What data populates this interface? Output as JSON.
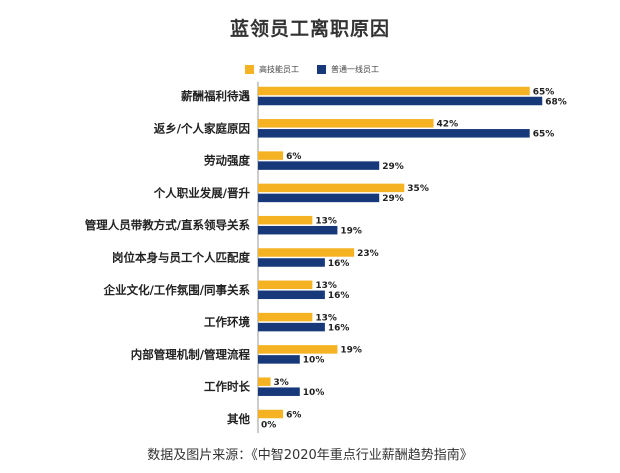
{
  "chart_data": {
    "type": "bar",
    "orientation": "horizontal",
    "title": "蓝领员工离职原因",
    "categories": [
      "薪酬福利待遇",
      "返乡/个人家庭原因",
      "劳动强度",
      "个人职业发展/晋升",
      "管理人员带教方式/直系领导关系",
      "岗位本身与员工个人匹配度",
      "企业文化/工作氛围/同事关系",
      "工作环境",
      "内部管理机制/管理流程",
      "工作时长",
      "其他"
    ],
    "series": [
      {
        "name": "高技能员工",
        "color": "#F5B324",
        "values": [
          65,
          42,
          6,
          35,
          13,
          23,
          13,
          13,
          19,
          3,
          6
        ]
      },
      {
        "name": "普通一线员工",
        "color": "#17397A",
        "values": [
          68,
          65,
          29,
          29,
          19,
          16,
          16,
          16,
          10,
          10,
          0
        ]
      }
    ],
    "value_suffix": "%",
    "legend_position": "top",
    "grid": false
  },
  "source_note": "数据及图片来源：《中智2020年重点行业薪酬趋势指南》"
}
